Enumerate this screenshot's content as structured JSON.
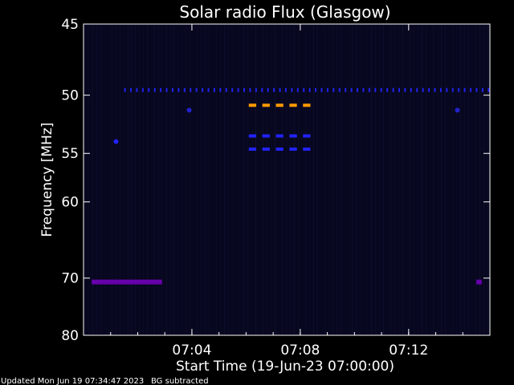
{
  "chart_data": {
    "type": "heatmap",
    "title": "Solar radio Flux (Glasgow)",
    "xlabel": "Start Time (19-Jun-23 07:00:00)",
    "ylabel": "Frequency [MHz]",
    "x_unit": "minutes after 07:00",
    "xlim": [
      0.0,
      15.0
    ],
    "ylim": [
      45,
      80
    ],
    "y_scale": "reciprocal",
    "x_ticks": [
      {
        "value": 4,
        "label": "07:04"
      },
      {
        "value": 8,
        "label": "07:08"
      },
      {
        "value": 12,
        "label": "07:12"
      }
    ],
    "y_ticks": [
      {
        "value": 45,
        "label": "45"
      },
      {
        "value": 50,
        "label": "50"
      },
      {
        "value": 55,
        "label": "55"
      },
      {
        "value": 60,
        "label": "60"
      },
      {
        "value": 70,
        "label": "70"
      },
      {
        "value": 80,
        "label": "80"
      }
    ],
    "background_color": "#07071f",
    "features": [
      {
        "kind": "dotted-band",
        "color": "#2222ee",
        "freq_mhz": 49.6,
        "t_start": 1.5,
        "t_end": 15.0,
        "spacing_min": 0.22
      },
      {
        "kind": "dashed-band",
        "color": "#ff9900",
        "freq_mhz": 50.8,
        "t_start": 6.1,
        "t_end": 8.2,
        "spacing_min": 0.5
      },
      {
        "kind": "dashed-band",
        "color": "#2222ff",
        "freq_mhz": 53.4,
        "t_start": 6.1,
        "t_end": 8.2,
        "spacing_min": 0.5
      },
      {
        "kind": "dashed-band",
        "color": "#2222ff",
        "freq_mhz": 54.6,
        "t_start": 6.1,
        "t_end": 8.2,
        "spacing_min": 0.5
      },
      {
        "kind": "band",
        "color": "#6600aa",
        "freq_mhz": 70.6,
        "t_start": 0.3,
        "t_end": 2.9
      },
      {
        "kind": "band",
        "color": "#6600aa",
        "freq_mhz": 70.6,
        "t_start": 14.5,
        "t_end": 14.7
      },
      {
        "kind": "spot",
        "color": "#2222ff",
        "freq_mhz": 53.9,
        "t": 1.2
      },
      {
        "kind": "spot",
        "color": "#2222cc",
        "freq_mhz": 51.2,
        "t": 3.9
      },
      {
        "kind": "spot",
        "color": "#2222cc",
        "freq_mhz": 51.2,
        "t": 13.8
      }
    ]
  },
  "footer": {
    "updated": "Updated Mon Jun 19 07:34:47 2023",
    "note": "BG subtracted"
  },
  "colors": {
    "page_background": "#000000",
    "axes_color": "#ffffff"
  }
}
